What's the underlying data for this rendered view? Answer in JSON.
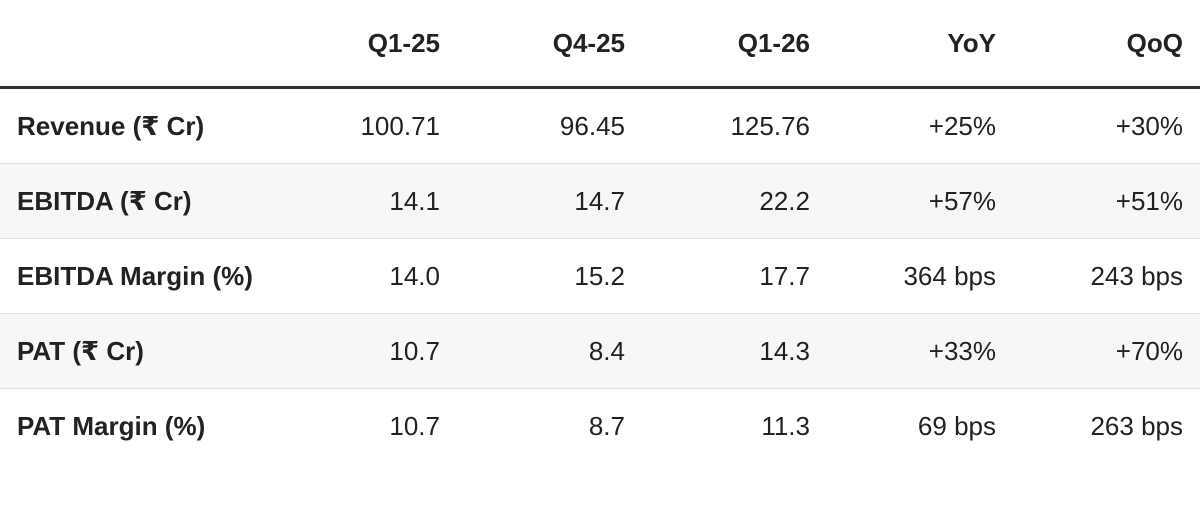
{
  "table": {
    "columns": [
      "",
      "Q1-25",
      "Q4-25",
      "Q1-26",
      "YoY",
      "QoQ"
    ],
    "rows": [
      [
        "Revenue (₹ Cr)",
        "100.71",
        "96.45",
        "125.76",
        "+25%",
        "+30%"
      ],
      [
        "EBITDA (₹ Cr)",
        "14.1",
        "14.7",
        "22.2",
        "+57%",
        "+51%"
      ],
      [
        "EBITDA Margin (%)",
        "14.0",
        "15.2",
        "17.7",
        "364 bps",
        "243 bps"
      ],
      [
        "PAT (₹ Cr)",
        "10.7",
        "8.4",
        "14.3",
        "+33%",
        "+70%"
      ],
      [
        "PAT Margin (%)",
        "10.7",
        "8.7",
        "11.3",
        "69 bps",
        "263 bps"
      ]
    ]
  }
}
